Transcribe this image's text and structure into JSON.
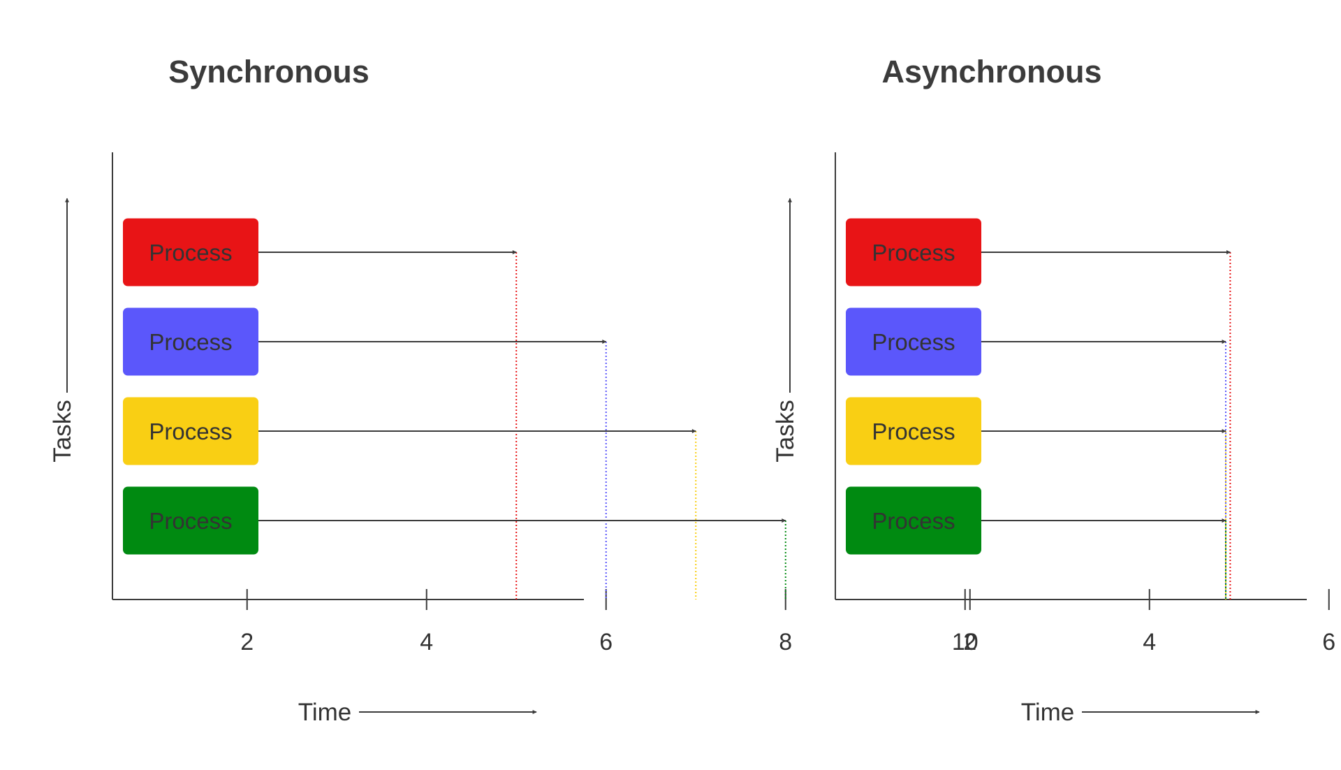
{
  "colors": {
    "axis": "#3b3b3b",
    "text": "#333333",
    "red": "#e81416",
    "blue": "#5b57fb",
    "yellow": "#f9cf14",
    "green": "#008a11"
  },
  "axes": {
    "x_label": "Time",
    "y_label": "Tasks",
    "x_ticks": [
      {
        "value": 2,
        "label": "2"
      },
      {
        "value": 4,
        "label": "4"
      },
      {
        "value": 6,
        "label": "6"
      },
      {
        "value": 8,
        "label": "8"
      },
      {
        "value": 10,
        "label": "10"
      }
    ]
  },
  "panels": [
    {
      "key": "sync",
      "title": "Synchronous",
      "processes": [
        {
          "label": "Process",
          "color": "#e81416",
          "end_time": 5.0
        },
        {
          "label": "Process",
          "color": "#5b57fb",
          "end_time": 6.0
        },
        {
          "label": "Process",
          "color": "#f9cf14",
          "end_time": 7.0
        },
        {
          "label": "Process",
          "color": "#008a11",
          "end_time": 8.0
        }
      ]
    },
    {
      "key": "async",
      "title": "Asynchronous",
      "processes": [
        {
          "label": "Process",
          "color": "#e81416",
          "end_time": 4.9
        },
        {
          "label": "Process",
          "color": "#5b57fb",
          "end_time": 4.85
        },
        {
          "label": "Process",
          "color": "#f9cf14",
          "end_time": 4.85
        },
        {
          "label": "Process",
          "color": "#008a11",
          "end_time": 4.85
        }
      ]
    }
  ]
}
